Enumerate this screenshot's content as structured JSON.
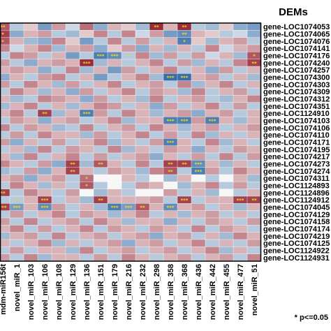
{
  "chart_data": {
    "type": "heatmap",
    "title": "DEMs",
    "note": "* p<=0.05",
    "colors": {
      "negative": "#235ea0",
      "neutral": "#f7f7f7",
      "positive": "#8e1426",
      "significance_mark": "#f2e01a"
    },
    "rows": [
      "gene-LOC1074053",
      "gene-LOC1074065",
      "gene-LOC1074076",
      "gene-LOC1074141",
      "gene-LOC1074176",
      "gene-LOC1074240",
      "gene-LOC1074257",
      "gene-LOC1074300",
      "gene-LOC1074303",
      "gene-LOC1074309",
      "gene-LOC1074312",
      "gene-LOC1074351",
      "gene-LOC1124910",
      "gene-LOC1074103",
      "gene-LOC1074106",
      "gene-LOC1074110",
      "gene-LOC1074171",
      "gene-LOC1074195",
      "gene-LOC1074217",
      "gene-LOC1074273",
      "gene-LOC1074274",
      "gene-LOC1074311",
      "gene-LOC1124893",
      "gene-LOC1124896",
      "gene-LOC1124912",
      "gene-LOC1074045",
      "gene-LOC1074129",
      "gene-LOC1074158",
      "gene-LOC1074174",
      "gene-LOC1074219",
      "gene-LOC1074125",
      "gene-LOC1124922",
      "gene-LOC1124931"
    ],
    "columns": [
      "mdm-miR156t",
      "novel_miR_1",
      "novel_miR_103",
      "novel_miR_106",
      "novel_miR_108",
      "novel_miR_129",
      "novel_miR_136",
      "novel_miR_151",
      "novel_miR_179",
      "novel_miR_216",
      "novel_miR_232",
      "novel_miR_298",
      "novel_miR_358",
      "novel_miR_368",
      "novel_miR_436",
      "novel_miR_442",
      "novel_miR_455",
      "novel_miR_477",
      "novel_miR_51"
    ],
    "values": [
      [
        0.7,
        -0.3,
        0.2,
        -0.6,
        0.4,
        -0.2,
        0.6,
        -0.5,
        0.3,
        0.2,
        -0.4,
        0.9,
        0.3,
        0.9,
        -0.3,
        -0.4,
        0.2,
        -0.5,
        -0.6
      ],
      [
        0.8,
        -0.5,
        0.3,
        0.4,
        -0.3,
        -0.4,
        0.2,
        0.5,
        -0.3,
        0.5,
        -0.2,
        0.4,
        -0.6,
        -0.7,
        0.3,
        0.2,
        -0.3,
        -0.2,
        -0.5
      ],
      [
        0.7,
        0.3,
        -0.4,
        -0.5,
        0.5,
        0.2,
        -0.6,
        -0.3,
        0.5,
        -0.3,
        0.4,
        -0.3,
        0.3,
        -0.8,
        0.2,
        -0.4,
        0.3,
        0.4,
        -0.3
      ],
      [
        0.5,
        -0.2,
        0.3,
        0.5,
        -0.4,
        0.3,
        0.4,
        -0.5,
        0.2,
        0.4,
        -0.5,
        0.3,
        -0.4,
        0.3,
        -0.3,
        0.5,
        -0.2,
        0.3,
        0.4
      ],
      [
        -0.3,
        0.5,
        0.4,
        -0.3,
        0.3,
        -0.6,
        -0.3,
        -0.8,
        -0.7,
        -0.3,
        0.5,
        -0.4,
        0.4,
        -0.3,
        0.4,
        -0.2,
        0.3,
        -0.4,
        0.7
      ],
      [
        0.4,
        -0.3,
        -0.5,
        0.3,
        0.4,
        0.3,
        0.9,
        -0.4,
        0.3,
        -0.3,
        0.3,
        0.5,
        -0.3,
        0.4,
        -0.4,
        0.3,
        -0.3,
        0.5,
        0.8
      ],
      [
        0.3,
        0.4,
        0.3,
        -0.5,
        -0.3,
        0.5,
        -0.4,
        0.3,
        -0.6,
        0.4,
        -0.3,
        0.3,
        0.5,
        -0.3,
        0.3,
        -0.5,
        0.4,
        -0.3,
        0.3
      ],
      [
        -0.5,
        0.3,
        -0.3,
        0.4,
        0.5,
        -0.3,
        0.3,
        -0.6,
        -0.3,
        0.3,
        0.5,
        -0.4,
        -0.9,
        -0.9,
        0.3,
        0.4,
        -0.3,
        0.3,
        -0.4
      ],
      [
        0.4,
        -0.3,
        0.5,
        0.3,
        -0.4,
        0.4,
        -0.3,
        0.3,
        0.5,
        -0.3,
        0.3,
        0.4,
        -0.3,
        0.5,
        -0.4,
        0.3,
        0.5,
        -0.3,
        0.3
      ],
      [
        -0.3,
        0.5,
        0.3,
        -0.4,
        0.3,
        -0.5,
        0.4,
        -0.3,
        0.3,
        0.5,
        -0.3,
        0.4,
        0.3,
        -0.4,
        0.5,
        -0.3,
        0.3,
        0.4,
        -0.3
      ],
      [
        0.3,
        -0.4,
        -0.3,
        0.5,
        0.4,
        0.3,
        -0.5,
        0.4,
        -0.3,
        0.3,
        -0.4,
        0.5,
        -0.3,
        0.3,
        0.4,
        -0.3,
        -0.4,
        0.3,
        0.5
      ],
      [
        -0.4,
        0.3,
        0.5,
        -0.3,
        0.3,
        -0.4,
        0.3,
        0.5,
        0.4,
        -0.3,
        0.3,
        -0.5,
        0.4,
        -0.3,
        0.3,
        0.5,
        -0.3,
        0.4,
        -0.3
      ],
      [
        0.3,
        0.5,
        -0.3,
        0.8,
        -0.4,
        0.3,
        -0.8,
        0.4,
        -0.3,
        0.5,
        0.3,
        -0.4,
        0.3,
        0.4,
        -0.5,
        0.3,
        0.4,
        -0.3,
        0.3
      ],
      [
        -0.3,
        0.4,
        0.3,
        -0.5,
        0.3,
        0.4,
        -0.3,
        0.3,
        0.5,
        -0.4,
        0.3,
        0.3,
        -0.8,
        -0.8,
        0.4,
        -0.8,
        0.3,
        -0.4,
        0.3
      ],
      [
        0.5,
        -0.3,
        0.4,
        0.3,
        -0.4,
        -0.3,
        0.5,
        -0.3,
        0.3,
        0.4,
        -0.3,
        0.5,
        0.3,
        -0.4,
        0.3,
        0.4,
        -0.3,
        0.3,
        0.4
      ],
      [
        -0.3,
        0.4,
        -0.3,
        0.5,
        0.3,
        0.3,
        -0.4,
        0.4,
        -0.3,
        0.3,
        0.5,
        -0.3,
        0.4,
        -0.3,
        0.5,
        -0.4,
        0.3,
        -0.3,
        0.3
      ],
      [
        0.4,
        -0.5,
        0.3,
        -0.3,
        0.4,
        -0.3,
        0.3,
        0.5,
        -0.4,
        0.3,
        -0.3,
        0.4,
        -0.8,
        0.3,
        -0.3,
        0.5,
        -0.4,
        0.3,
        -0.3
      ],
      [
        -0.3,
        0.3,
        -0.4,
        0.5,
        -0.3,
        0.4,
        0.3,
        -0.3,
        0.5,
        -0.4,
        0.3,
        -0.3,
        0.4,
        0.3,
        -0.5,
        0.3,
        -0.3,
        0.4,
        0.3
      ],
      [
        0.3,
        -0.4,
        0.5,
        -0.3,
        0.3,
        0.5,
        -0.3,
        0.4,
        -0.3,
        0.3,
        0.4,
        -0.5,
        0.3,
        -0.3,
        0.4,
        -0.3,
        0.5,
        -0.3,
        0.4
      ],
      [
        0.5,
        0.3,
        -0.3,
        0.4,
        -0.5,
        0.8,
        -0.4,
        0.7,
        0.3,
        -0.3,
        0.5,
        -0.3,
        0.8,
        0.8,
        -0.7,
        0.3,
        -0.4,
        0.3,
        -0.3
      ],
      [
        -0.4,
        -0.3,
        0.4,
        -0.5,
        0.3,
        0.8,
        0.3,
        -0.3,
        0.4,
        0.3,
        -0.4,
        0.5,
        0.7,
        -0.3,
        -0.8,
        0.4,
        -0.3,
        0.5,
        0.3
      ],
      [
        0.3,
        0.4,
        -0.5,
        0.3,
        0.4,
        -0.3,
        0.6,
        0.0,
        0.0,
        0.3,
        -0.3,
        0.0,
        -0.4,
        0.3,
        0.0,
        -0.3,
        0.0,
        0.3,
        -0.4
      ],
      [
        -0.3,
        0.5,
        0.3,
        -0.4,
        0.3,
        -0.3,
        0.7,
        -0.3,
        0.0,
        -0.3,
        0.4,
        0.3,
        0.0,
        -0.4,
        0.3,
        0.5,
        -0.3,
        0.4,
        -0.3
      ],
      [
        0.8,
        -0.3,
        0.5,
        0.3,
        -0.3,
        0.4,
        0.0,
        -0.4,
        0.3,
        -0.3,
        0.0,
        0.0,
        0.4,
        -0.3,
        0.3,
        -0.4,
        0.0,
        -0.3,
        0.3
      ],
      [
        -0.3,
        -0.3,
        0.3,
        0.8,
        -0.3,
        0.3,
        -0.4,
        0.8,
        0.3,
        0.3,
        0.3,
        0.4,
        -0.3,
        0.8,
        -0.3,
        0.3,
        0.3,
        0.8,
        0.8
      ],
      [
        0.8,
        -0.6,
        0.3,
        -0.7,
        0.4,
        -0.3,
        0.3,
        -0.4,
        -0.8,
        -0.6,
        0.7,
        0.3,
        -0.7,
        0.3,
        0.4,
        -0.3,
        0.3,
        -0.4,
        0.3
      ],
      [
        -0.3,
        0.4,
        -0.3,
        0.3,
        0.5,
        -0.3,
        0.4,
        0.3,
        -0.4,
        0.3,
        0.5,
        -0.3,
        0.3,
        -0.4,
        0.3,
        0.4,
        -0.3,
        0.3,
        -0.3
      ],
      [
        0.4,
        -0.3,
        0.5,
        -0.3,
        0.3,
        0.4,
        -0.3,
        0.5,
        0.3,
        -0.4,
        0.3,
        0.3,
        -0.5,
        0.3,
        -0.3,
        0.4,
        0.3,
        -0.3,
        0.4
      ],
      [
        0.3,
        0.5,
        -0.3,
        0.4,
        -0.3,
        0.3,
        0.5,
        -0.3,
        0.4,
        0.3,
        -0.3,
        0.4,
        0.3,
        -0.3,
        0.5,
        -0.3,
        0.4,
        0.3,
        -0.3
      ],
      [
        -0.4,
        0.3,
        0.4,
        -0.3,
        0.5,
        -0.3,
        0.3,
        0.4,
        -0.3,
        0.3,
        0.4,
        -0.5,
        0.3,
        0.4,
        -0.3,
        0.3,
        -0.4,
        0.5,
        0.3
      ],
      [
        0.3,
        -0.3,
        0.3,
        0.5,
        -0.4,
        0.3,
        -0.3,
        0.3,
        0.4,
        -0.5,
        0.3,
        0.4,
        -0.3,
        0.3,
        0.5,
        -0.3,
        0.3,
        -0.3,
        0.4
      ],
      [
        -0.3,
        0.4,
        -0.3,
        0.3,
        0.3,
        -0.4,
        0.5,
        -0.3,
        0.3,
        0.4,
        -0.3,
        0.3,
        0.4,
        -0.3,
        0.3,
        0.5,
        -0.4,
        0.3,
        -0.3
      ],
      [
        0.4,
        -0.3,
        0.5,
        -0.4,
        0.3,
        0.3,
        -0.3,
        0.4,
        -0.3,
        0.5,
        0.3,
        -0.3,
        0.3,
        0.4,
        -0.3,
        0.3,
        0.4,
        -0.3,
        0.5
      ]
    ],
    "significance": [
      [
        "**",
        "",
        "",
        "",
        "",
        "",
        "",
        "",
        "",
        "",
        "",
        "**",
        "",
        "**",
        "",
        "",
        "",
        "",
        ""
      ],
      [
        "*",
        "",
        "",
        "",
        "",
        "",
        "",
        "",
        "",
        "",
        "",
        "",
        "",
        "**",
        "",
        "",
        "",
        "",
        ""
      ],
      [
        "*",
        "",
        "",
        "",
        "",
        "",
        "",
        "",
        "",
        "",
        "",
        "",
        "",
        "*",
        "",
        "",
        "",
        "",
        ""
      ],
      [
        "",
        "",
        "",
        "",
        "",
        "",
        "",
        "",
        "",
        "",
        "",
        "",
        "",
        "",
        "",
        "",
        "",
        "",
        ""
      ],
      [
        "",
        "",
        "",
        "",
        "",
        "",
        "",
        "***",
        "***",
        "*",
        "",
        "",
        "",
        "",
        "",
        "",
        "",
        "",
        "*"
      ],
      [
        "",
        "",
        "",
        "",
        "",
        "",
        "***",
        "",
        "",
        "",
        "",
        "",
        "",
        "",
        "",
        "",
        "",
        "",
        "**"
      ],
      [
        "",
        "",
        "",
        "",
        "",
        "",
        "",
        "",
        "",
        "",
        "",
        "",
        "",
        "",
        "",
        "",
        "",
        "",
        ""
      ],
      [
        "",
        "",
        "",
        "",
        "",
        "",
        "",
        "",
        "",
        "",
        "",
        "",
        "***",
        "***",
        "",
        "",
        "",
        "",
        ""
      ],
      [
        "",
        "",
        "",
        "",
        "",
        "",
        "",
        "",
        "",
        "",
        "",
        "",
        "",
        "",
        "",
        "",
        "",
        "",
        ""
      ],
      [
        "",
        "",
        "",
        "",
        "",
        "",
        "",
        "",
        "",
        "",
        "",
        "",
        "",
        "",
        "",
        "",
        "",
        "",
        ""
      ],
      [
        "",
        "",
        "",
        "",
        "",
        "",
        "",
        "",
        "",
        "",
        "",
        "",
        "",
        "",
        "",
        "",
        "",
        "",
        ""
      ],
      [
        "",
        "",
        "",
        "",
        "",
        "",
        "",
        "",
        "",
        "",
        "",
        "",
        "",
        "",
        "",
        "",
        "",
        "",
        ""
      ],
      [
        "",
        "",
        "",
        "**",
        "",
        "",
        "***",
        "",
        "",
        "",
        "",
        "",
        "",
        "",
        "",
        "",
        "",
        "",
        ""
      ],
      [
        "",
        "",
        "",
        "",
        "",
        "",
        "",
        "",
        "",
        "",
        "",
        "",
        "***",
        "***",
        "",
        "***",
        "",
        "",
        ""
      ],
      [
        "",
        "",
        "",
        "",
        "",
        "",
        "",
        "",
        "",
        "",
        "",
        "",
        "",
        "",
        "",
        "",
        "",
        "",
        ""
      ],
      [
        "",
        "",
        "",
        "",
        "",
        "",
        "",
        "",
        "",
        "",
        "",
        "",
        "",
        "",
        "",
        "",
        "",
        "",
        ""
      ],
      [
        "",
        "",
        "",
        "",
        "",
        "",
        "",
        "",
        "",
        "",
        "",
        "",
        "***",
        "",
        "",
        "",
        "",
        "",
        ""
      ],
      [
        "",
        "",
        "",
        "",
        "",
        "",
        "",
        "",
        "",
        "",
        "",
        "",
        "",
        "",
        "",
        "",
        "",
        "",
        ""
      ],
      [
        "",
        "",
        "",
        "",
        "",
        "",
        "",
        "",
        "",
        "",
        "",
        "",
        "",
        "",
        "",
        "",
        "",
        "",
        ""
      ],
      [
        "",
        "",
        "",
        "",
        "",
        "**",
        "",
        "**",
        "",
        "",
        "",
        "",
        "**",
        "**",
        "***",
        "",
        "",
        "",
        ""
      ],
      [
        "",
        "",
        "",
        "",
        "",
        "**",
        "",
        "",
        "",
        "",
        "",
        "",
        "**",
        "",
        "***",
        "",
        "",
        "",
        ""
      ],
      [
        "",
        "",
        "",
        "",
        "",
        "",
        "*",
        "",
        "",
        "",
        "",
        "",
        "",
        "",
        "",
        "",
        "",
        "",
        ""
      ],
      [
        "",
        "",
        "",
        "",
        "",
        "",
        "*",
        "",
        "",
        "",
        "",
        "",
        "",
        "",
        "",
        "",
        "",
        "",
        ""
      ],
      [
        "**",
        "",
        "",
        "",
        "",
        "",
        "",
        "",
        "",
        "",
        "",
        "",
        "",
        "",
        "",
        "",
        "",
        "",
        ""
      ],
      [
        "",
        "*",
        "",
        "***",
        "",
        "",
        "",
        "**",
        "",
        "",
        "",
        "",
        "",
        "***",
        "",
        "",
        "",
        "***",
        "**"
      ],
      [
        "***",
        "***",
        "",
        "***",
        "",
        "",
        "",
        "",
        "***",
        "***",
        "**",
        "",
        "***",
        "",
        "",
        "",
        "",
        "",
        ""
      ],
      [
        "",
        "",
        "",
        "",
        "",
        "",
        "",
        "",
        "",
        "",
        "",
        "",
        "",
        "",
        "",
        "",
        "",
        "",
        ""
      ],
      [
        "",
        "",
        "",
        "",
        "",
        "",
        "",
        "",
        "",
        "",
        "",
        "",
        "",
        "",
        "",
        "",
        "",
        "",
        ""
      ],
      [
        "",
        "",
        "",
        "",
        "",
        "",
        "",
        "",
        "",
        "",
        "",
        "",
        "",
        "",
        "",
        "",
        "",
        "",
        ""
      ],
      [
        "",
        "",
        "",
        "",
        "",
        "",
        "",
        "",
        "",
        "",
        "",
        "",
        "",
        "",
        "",
        "",
        "",
        "",
        ""
      ],
      [
        "",
        "",
        "",
        "",
        "",
        "",
        "",
        "",
        "",
        "",
        "",
        "",
        "",
        "",
        "",
        "",
        "",
        "",
        ""
      ],
      [
        "",
        "",
        "",
        "",
        "",
        "",
        "",
        "",
        "",
        "",
        "",
        "",
        "",
        "",
        "",
        "",
        "",
        "",
        ""
      ],
      [
        "",
        "",
        "",
        "",
        "",
        "",
        "",
        "",
        "",
        "",
        "",
        "",
        "",
        "",
        "",
        "",
        "",
        "",
        ""
      ]
    ]
  }
}
